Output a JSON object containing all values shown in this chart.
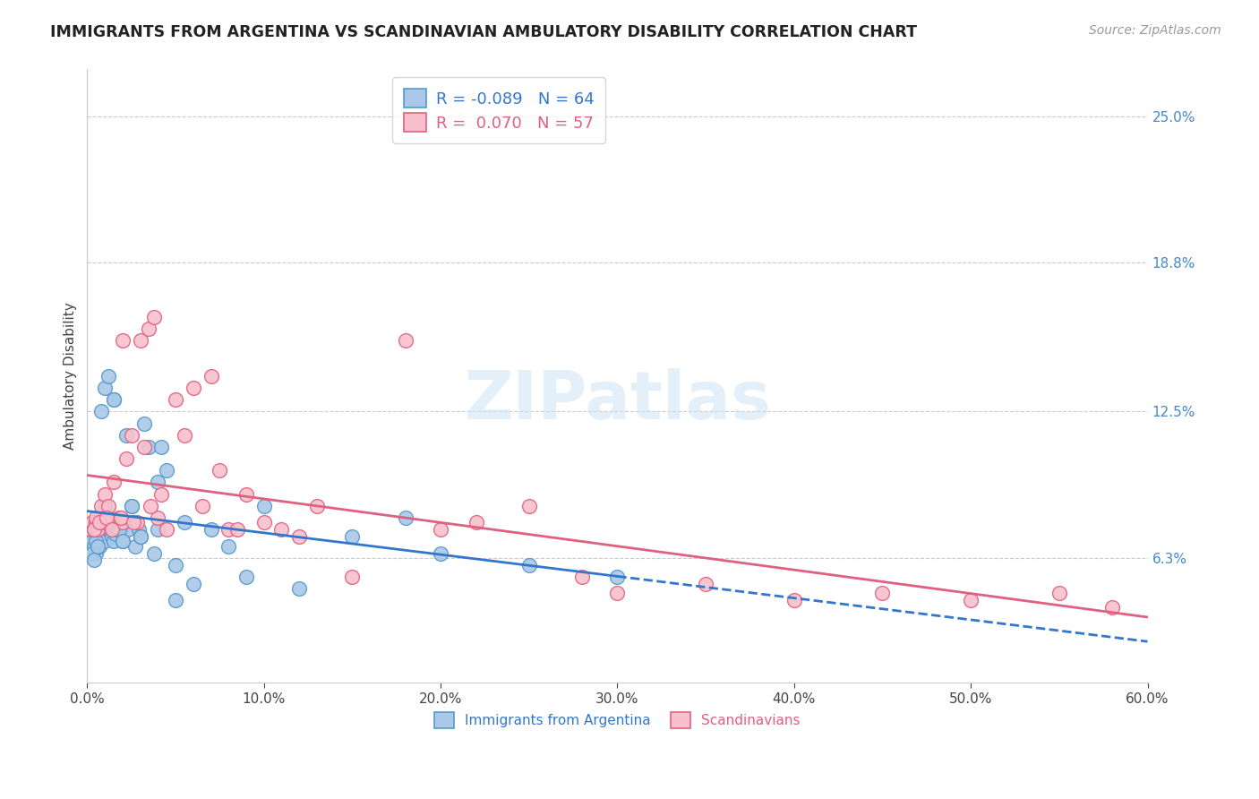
{
  "title": "IMMIGRANTS FROM ARGENTINA VS SCANDINAVIAN AMBULATORY DISABILITY CORRELATION CHART",
  "source": "Source: ZipAtlas.com",
  "ylabel": "Ambulatory Disability",
  "xlabel_ticks": [
    "0.0%",
    "10.0%",
    "20.0%",
    "30.0%",
    "40.0%",
    "50.0%",
    "60.0%"
  ],
  "xlabel_vals": [
    0.0,
    10.0,
    20.0,
    30.0,
    40.0,
    50.0,
    60.0
  ],
  "ylabel_ticks_right": [
    "6.3%",
    "12.5%",
    "18.8%",
    "25.0%"
  ],
  "ylabel_vals_right": [
    6.3,
    12.5,
    18.8,
    25.0
  ],
  "xmin": 0.0,
  "xmax": 60.0,
  "ymin": 1.0,
  "ymax": 27.0,
  "legend_blue_R": "-0.089",
  "legend_blue_N": "64",
  "legend_pink_R": "0.070",
  "legend_pink_N": "57",
  "legend_label_blue": "Immigrants from Argentina",
  "legend_label_pink": "Scandinavians",
  "blue_scatter_color": "#aac8e8",
  "blue_edge_color": "#5599cc",
  "pink_scatter_color": "#f8c0cc",
  "pink_edge_color": "#e06080",
  "blue_line_color": "#3377cc",
  "pink_line_color": "#e06080",
  "watermark": "ZIPatlas",
  "blue_scatter_x": [
    0.2,
    0.3,
    0.4,
    0.5,
    0.5,
    0.6,
    0.7,
    0.7,
    0.8,
    0.9,
    1.0,
    1.0,
    1.1,
    1.2,
    1.2,
    1.3,
    1.4,
    1.5,
    1.5,
    1.6,
    1.7,
    1.8,
    1.9,
    2.0,
    2.1,
    2.2,
    2.3,
    2.5,
    2.7,
    2.9,
    3.0,
    3.2,
    3.5,
    3.8,
    4.0,
    4.2,
    4.5,
    5.0,
    5.5,
    6.0,
    7.0,
    8.0,
    9.0,
    10.0,
    12.0,
    15.0,
    18.0,
    20.0,
    25.0,
    30.0,
    0.3,
    0.4,
    0.5,
    0.6,
    0.8,
    1.0,
    1.2,
    1.5,
    1.8,
    2.0,
    2.5,
    3.0,
    4.0,
    5.0
  ],
  "blue_scatter_y": [
    7.2,
    7.0,
    6.8,
    6.5,
    7.5,
    7.0,
    6.8,
    7.2,
    7.5,
    7.8,
    7.0,
    8.5,
    7.8,
    7.5,
    8.0,
    7.5,
    7.2,
    7.0,
    13.0,
    7.3,
    7.5,
    7.8,
    7.5,
    7.0,
    7.8,
    11.5,
    7.5,
    8.5,
    6.8,
    7.5,
    7.2,
    12.0,
    11.0,
    6.5,
    9.5,
    11.0,
    10.0,
    6.0,
    7.8,
    5.2,
    7.5,
    6.8,
    5.5,
    8.5,
    5.0,
    7.2,
    8.0,
    6.5,
    6.0,
    5.5,
    6.5,
    6.2,
    7.0,
    6.8,
    12.5,
    13.5,
    14.0,
    13.0,
    7.5,
    7.0,
    8.5,
    7.2,
    7.5,
    4.5
  ],
  "pink_scatter_x": [
    0.2,
    0.3,
    0.4,
    0.5,
    0.5,
    0.6,
    0.8,
    1.0,
    1.0,
    1.2,
    1.5,
    1.8,
    2.0,
    2.0,
    2.2,
    2.5,
    2.8,
    3.0,
    3.2,
    3.5,
    3.8,
    4.0,
    4.5,
    5.0,
    5.5,
    6.0,
    7.0,
    8.0,
    9.0,
    10.0,
    12.0,
    15.0,
    18.0,
    20.0,
    25.0,
    30.0,
    35.0,
    40.0,
    45.0,
    50.0,
    55.0,
    58.0,
    0.4,
    0.7,
    1.1,
    1.4,
    1.9,
    2.6,
    3.6,
    4.2,
    6.5,
    7.5,
    8.5,
    11.0,
    13.0,
    22.0,
    28.0
  ],
  "pink_scatter_y": [
    7.5,
    7.8,
    7.5,
    7.8,
    8.0,
    7.5,
    8.5,
    7.8,
    9.0,
    8.5,
    9.5,
    8.0,
    7.8,
    15.5,
    10.5,
    11.5,
    7.8,
    15.5,
    11.0,
    16.0,
    16.5,
    8.0,
    7.5,
    13.0,
    11.5,
    13.5,
    14.0,
    7.5,
    9.0,
    7.8,
    7.2,
    5.5,
    15.5,
    7.5,
    8.5,
    4.8,
    5.2,
    4.5,
    4.8,
    4.5,
    4.8,
    4.2,
    7.5,
    7.8,
    8.0,
    7.5,
    8.0,
    7.8,
    8.5,
    9.0,
    8.5,
    10.0,
    7.5,
    7.5,
    8.5,
    7.8,
    5.5
  ]
}
